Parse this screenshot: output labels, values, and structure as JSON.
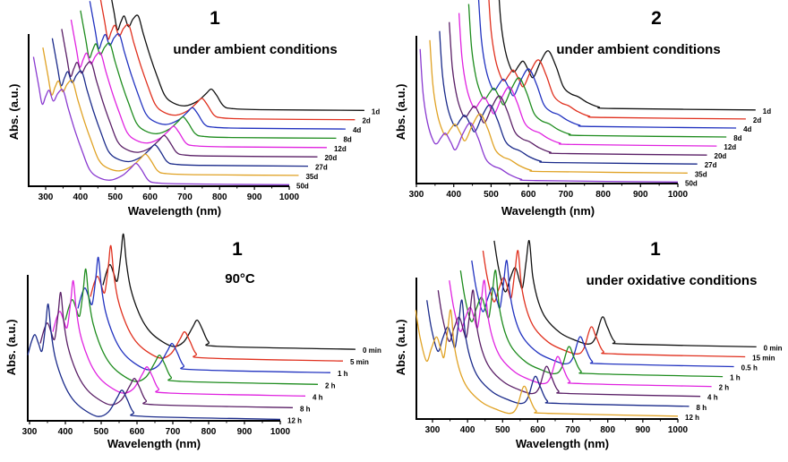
{
  "chart_data": [
    {
      "type": "line",
      "title": "1",
      "subtitle": "under ambient conditions",
      "xlabel": "Wavelength (nm)",
      "ylabel": "Abs. (a.u.)",
      "xlim": [
        251,
        1000
      ],
      "ylim": [
        0,
        1
      ],
      "xticks": [
        300,
        400,
        500,
        600,
        700,
        800,
        900,
        1000
      ],
      "stack": {
        "x_shift_nm": 27,
        "y_shift": 0.061,
        "base_offset": 0.01
      },
      "base_curve": [
        [
          265,
          0.84
        ],
        [
          280,
          0.65
        ],
        [
          290,
          0.53
        ],
        [
          300,
          0.58
        ],
        [
          310,
          0.62
        ],
        [
          322,
          0.55
        ],
        [
          335,
          0.6
        ],
        [
          350,
          0.62
        ],
        [
          365,
          0.5
        ],
        [
          385,
          0.35
        ],
        [
          405,
          0.22
        ],
        [
          426,
          0.1
        ],
        [
          450,
          0.05
        ],
        [
          485,
          0.03
        ],
        [
          520,
          0.06
        ],
        [
          545,
          0.11
        ],
        [
          560,
          0.14
        ],
        [
          575,
          0.1
        ],
        [
          595,
          0.03
        ],
        [
          620,
          0.012
        ],
        [
          700,
          0.005
        ],
        [
          1000,
          0
        ]
      ],
      "series": [
        {
          "name": "1d",
          "color": "#111111"
        },
        {
          "name": "2d",
          "color": "#e0301e"
        },
        {
          "name": "4d",
          "color": "#2233c0"
        },
        {
          "name": "8d",
          "color": "#1e8c1e"
        },
        {
          "name": "12d",
          "color": "#e023e0"
        },
        {
          "name": "20d",
          "color": "#5a1f66"
        },
        {
          "name": "27d",
          "color": "#1a2a8a"
        },
        {
          "name": "35d",
          "color": "#e0a224"
        },
        {
          "name": "50d",
          "color": "#8a3ad0"
        }
      ]
    },
    {
      "type": "line",
      "title": "2",
      "subtitle": "under ambient conditions",
      "xlabel": "Wavelength (nm)",
      "ylabel": "Abs. (a.u.)",
      "xlim": [
        300,
        1000
      ],
      "ylim": [
        0,
        1
      ],
      "xticks": [
        300,
        400,
        500,
        600,
        700,
        800,
        900,
        1000
      ],
      "stack": {
        "x_shift_nm": 26,
        "y_shift": 0.061,
        "base_offset": 0.01
      },
      "base_curve": [
        [
          310,
          0.9
        ],
        [
          318,
          0.6
        ],
        [
          330,
          0.4
        ],
        [
          345,
          0.28
        ],
        [
          355,
          0.26
        ],
        [
          366,
          0.3
        ],
        [
          378,
          0.33
        ],
        [
          392,
          0.27
        ],
        [
          405,
          0.22
        ],
        [
          425,
          0.33
        ],
        [
          445,
          0.4
        ],
        [
          465,
          0.3
        ],
        [
          485,
          0.16
        ],
        [
          505,
          0.11
        ],
        [
          525,
          0.09
        ],
        [
          550,
          0.05
        ],
        [
          580,
          0.02
        ],
        [
          620,
          0.01
        ],
        [
          1000,
          0
        ]
      ],
      "series": [
        {
          "name": "1d",
          "color": "#111111"
        },
        {
          "name": "2d",
          "color": "#e0301e"
        },
        {
          "name": "4d",
          "color": "#2233c0"
        },
        {
          "name": "8d",
          "color": "#1e8c1e"
        },
        {
          "name": "12d",
          "color": "#e023e0"
        },
        {
          "name": "20d",
          "color": "#5a1f66"
        },
        {
          "name": "27d",
          "color": "#1a2a8a"
        },
        {
          "name": "35d",
          "color": "#e0a224"
        },
        {
          "name": "50d",
          "color": "#8a3ad0"
        }
      ]
    },
    {
      "type": "line",
      "title": "1",
      "subtitle": "90°C",
      "xlabel": "Wavelength (nm)",
      "ylabel": "Abs. (a.u.)",
      "xlim": [
        295,
        1000
      ],
      "ylim": [
        0,
        1
      ],
      "xticks": [
        300,
        400,
        500,
        600,
        700,
        800,
        900,
        1000
      ],
      "stack": {
        "x_shift_nm": 35,
        "y_shift": 0.08,
        "base_offset": 0.01
      },
      "base_curve": [
        [
          295,
          0.44
        ],
        [
          305,
          0.53
        ],
        [
          315,
          0.58
        ],
        [
          325,
          0.52
        ],
        [
          335,
          0.47
        ],
        [
          345,
          0.65
        ],
        [
          352,
          0.79
        ],
        [
          360,
          0.6
        ],
        [
          372,
          0.42
        ],
        [
          395,
          0.25
        ],
        [
          420,
          0.14
        ],
        [
          450,
          0.07
        ],
        [
          490,
          0.02
        ],
        [
          520,
          0.05
        ],
        [
          545,
          0.15
        ],
        [
          558,
          0.2
        ],
        [
          572,
          0.14
        ],
        [
          590,
          0.05
        ],
        [
          620,
          0.02
        ],
        [
          1000,
          0
        ]
      ],
      "series": [
        {
          "name": "0 min",
          "color": "#111111"
        },
        {
          "name": "5 min",
          "color": "#e0301e"
        },
        {
          "name": "1 h",
          "color": "#2233c0"
        },
        {
          "name": "2 h",
          "color": "#1e8c1e"
        },
        {
          "name": "4 h",
          "color": "#e023e0"
        },
        {
          "name": "8 h",
          "color": "#5a1f66"
        },
        {
          "name": "12 h",
          "color": "#1a2a8a"
        }
      ]
    },
    {
      "type": "line",
      "title": "1",
      "subtitle": "under oxidative conditions",
      "xlabel": "Wavelength (nm)",
      "ylabel": "Abs. (a.u.)",
      "xlim": [
        254,
        1000
      ],
      "ylim": [
        0,
        1
      ],
      "xticks": [
        300,
        400,
        500,
        600,
        700,
        800,
        900,
        1000
      ],
      "stack": {
        "x_shift_nm": 32,
        "y_shift": 0.07,
        "base_offset": 0.02
      },
      "base_curve": [
        [
          252,
          0.75
        ],
        [
          265,
          0.55
        ],
        [
          283,
          0.39
        ],
        [
          297,
          0.48
        ],
        [
          312,
          0.56
        ],
        [
          325,
          0.46
        ],
        [
          333,
          0.42
        ],
        [
          343,
          0.6
        ],
        [
          352,
          0.75
        ],
        [
          362,
          0.5
        ],
        [
          378,
          0.32
        ],
        [
          400,
          0.2
        ],
        [
          440,
          0.1
        ],
        [
          480,
          0.05
        ],
        [
          520,
          0.02
        ],
        [
          540,
          0.06
        ],
        [
          560,
          0.21
        ],
        [
          575,
          0.14
        ],
        [
          595,
          0.04
        ],
        [
          630,
          0.02
        ],
        [
          1000,
          0
        ]
      ],
      "series": [
        {
          "name": "0 min",
          "color": "#111111"
        },
        {
          "name": "15 min",
          "color": "#e0301e"
        },
        {
          "name": "0.5 h",
          "color": "#2233c0"
        },
        {
          "name": "1 h",
          "color": "#1e8c1e"
        },
        {
          "name": "2 h",
          "color": "#e023e0"
        },
        {
          "name": "4 h",
          "color": "#5a1f66"
        },
        {
          "name": "8 h",
          "color": "#1a2a8a"
        },
        {
          "name": "12 h",
          "color": "#e0a224"
        }
      ]
    }
  ]
}
